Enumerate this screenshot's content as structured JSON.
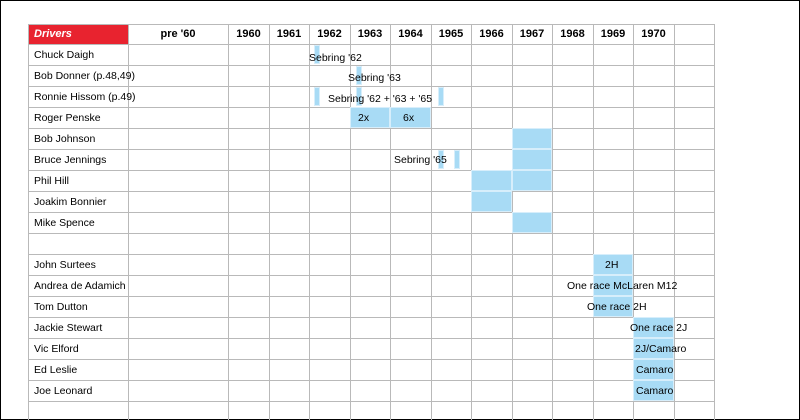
{
  "header": {
    "drivers_label": "Drivers",
    "years": [
      "pre '60",
      "1960",
      "1961",
      "1962",
      "1963",
      "1964",
      "1965",
      "1966",
      "1967",
      "1968",
      "1969",
      "1970"
    ]
  },
  "drivers": [
    "Chuck Daigh",
    "Bob Donner (p.48,49)",
    "Ronnie Hissom (p.49)",
    "Roger Penske",
    "Bob Johnson",
    "Bruce Jennings",
    "Phil Hill",
    "Joakim Bonnier",
    "Mike Spence",
    "",
    "John Surtees",
    "Andrea de Adamich",
    "Tom Dutton",
    "Jackie Stewart",
    "Vic Elford",
    "Ed Leslie",
    "Joe Leonard"
  ],
  "notes": {
    "daigh": "Sebring '62",
    "donner": "Sebring '63",
    "hissom": "Sebring '62 + '63 + '65",
    "penske_1963": "2x",
    "penske_1964": "6x",
    "jennings": "Sebring '65",
    "surtees": "2H",
    "deadamich": "One race McLaren M12",
    "dutton": "One race 2H",
    "stewart": "One race 2J",
    "elford": "2J/Camaro",
    "leslie": "Camaro",
    "leonard": "Camaro"
  },
  "colors": {
    "header_red": "#e8232f",
    "highlight": "#a8dbf5"
  }
}
